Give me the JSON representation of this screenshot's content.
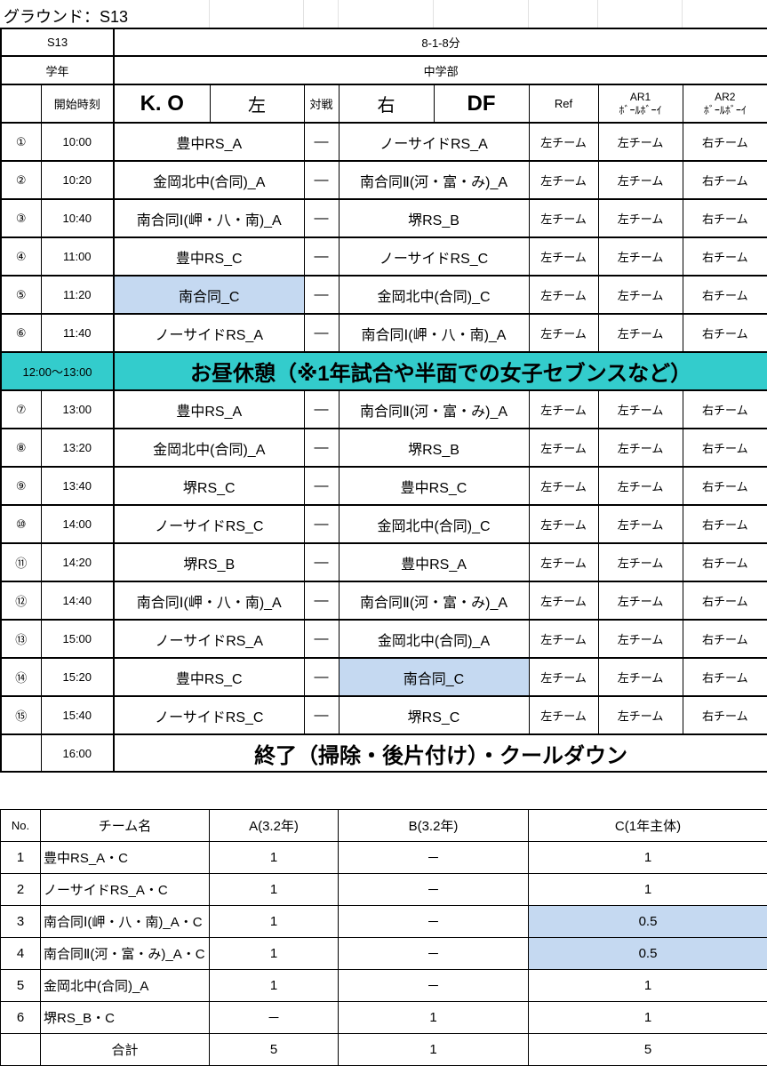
{
  "title": "グラウンド：S13",
  "colors": {
    "lunch": "#33CCCC",
    "highlight": "#C5D9F1"
  },
  "info": {
    "ground_label": "S13",
    "format": "8-1-8分",
    "grade_label": "学年",
    "grade": "中学部"
  },
  "header": {
    "start_time": "開始時刻",
    "ko": "K. O",
    "left": "左",
    "vs": "対戦",
    "right": "右",
    "df": "DF",
    "ref": "Ref",
    "ar1": "AR1",
    "ar1_sub": "ﾎﾞｰﾙﾎﾞｰｲ",
    "ar2": "AR2",
    "ar2_sub": "ﾎﾞｰﾙﾎﾞｰｲ"
  },
  "matches_am": [
    {
      "no": "①",
      "time": "10:00",
      "left": "豊中RS_A",
      "vs": "—",
      "right": "ノーサイドRS_A",
      "ref": "左チーム",
      "ar1": "左チーム",
      "ar2": "右チーム"
    },
    {
      "no": "②",
      "time": "10:20",
      "left": "金岡北中(合同)_A",
      "vs": "—",
      "right": "南合同Ⅱ(河・富・み)_A",
      "ref": "左チーム",
      "ar1": "左チーム",
      "ar2": "右チーム"
    },
    {
      "no": "③",
      "time": "10:40",
      "left": "南合同Ⅰ(岬・八・南)_A",
      "vs": "—",
      "right": "堺RS_B",
      "ref": "左チーム",
      "ar1": "左チーム",
      "ar2": "右チーム"
    },
    {
      "no": "④",
      "time": "11:00",
      "left": "豊中RS_C",
      "vs": "—",
      "right": "ノーサイドRS_C",
      "ref": "左チーム",
      "ar1": "左チーム",
      "ar2": "右チーム"
    },
    {
      "no": "⑤",
      "time": "11:20",
      "left": "南合同_C",
      "left_hl": true,
      "vs": "—",
      "right": "金岡北中(合同)_C",
      "ref": "左チーム",
      "ar1": "左チーム",
      "ar2": "右チーム"
    },
    {
      "no": "⑥",
      "time": "11:40",
      "left": "ノーサイドRS_A",
      "vs": "—",
      "right": "南合同Ⅰ(岬・八・南)_A",
      "ref": "左チーム",
      "ar1": "左チーム",
      "ar2": "右チーム"
    }
  ],
  "lunch": {
    "time": "12:00～13:00",
    "label": "お昼休憩（※1年試合や半面での女子セブンスなど）"
  },
  "matches_pm": [
    {
      "no": "⑦",
      "time": "13:00",
      "left": "豊中RS_A",
      "vs": "—",
      "right": "南合同Ⅱ(河・富・み)_A",
      "ref": "左チーム",
      "ar1": "左チーム",
      "ar2": "右チーム"
    },
    {
      "no": "⑧",
      "time": "13:20",
      "left": "金岡北中(合同)_A",
      "vs": "—",
      "right": "堺RS_B",
      "ref": "左チーム",
      "ar1": "左チーム",
      "ar2": "右チーム"
    },
    {
      "no": "⑨",
      "time": "13:40",
      "left": "堺RS_C",
      "vs": "—",
      "right": "豊中RS_C",
      "ref": "左チーム",
      "ar1": "左チーム",
      "ar2": "右チーム"
    },
    {
      "no": "⑩",
      "time": "14:00",
      "left": "ノーサイドRS_C",
      "vs": "—",
      "right": "金岡北中(合同)_C",
      "ref": "左チーム",
      "ar1": "左チーム",
      "ar2": "右チーム"
    },
    {
      "no": "⑪",
      "time": "14:20",
      "left": "堺RS_B",
      "vs": "—",
      "right": "豊中RS_A",
      "ref": "左チーム",
      "ar1": "左チーム",
      "ar2": "右チーム"
    },
    {
      "no": "⑫",
      "time": "14:40",
      "left": "南合同Ⅰ(岬・八・南)_A",
      "vs": "—",
      "right": "南合同Ⅱ(河・富・み)_A",
      "ref": "左チーム",
      "ar1": "左チーム",
      "ar2": "右チーム"
    },
    {
      "no": "⑬",
      "time": "15:00",
      "left": "ノーサイドRS_A",
      "vs": "—",
      "right": "金岡北中(合同)_A",
      "ref": "左チーム",
      "ar1": "左チーム",
      "ar2": "右チーム"
    },
    {
      "no": "⑭",
      "time": "15:20",
      "left": "豊中RS_C",
      "vs": "—",
      "right": "南合同_C",
      "right_hl": true,
      "ref": "左チーム",
      "ar1": "左チーム",
      "ar2": "右チーム"
    },
    {
      "no": "⑮",
      "time": "15:40",
      "left": "ノーサイドRS_C",
      "vs": "—",
      "right": "堺RS_C",
      "ref": "左チーム",
      "ar1": "左チーム",
      "ar2": "右チーム"
    }
  ],
  "end": {
    "time": "16:00",
    "label": "終了（掃除・後片付け）・クールダウン"
  },
  "summary": {
    "headers": [
      "No.",
      "チーム名",
      "A(3.2年)",
      "B(3.2年)",
      "C(1年主体)"
    ],
    "rows": [
      {
        "no": "1",
        "name": "豊中RS_A・C",
        "a": "1",
        "b": "－",
        "c": "1"
      },
      {
        "no": "2",
        "name": "ノーサイドRS_A・C",
        "a": "1",
        "b": "－",
        "c": "1"
      },
      {
        "no": "3",
        "name": "南合同Ⅰ(岬・八・南)_A・C",
        "a": "1",
        "b": "－",
        "c": "0.5",
        "c_hl": true
      },
      {
        "no": "4",
        "name": "南合同Ⅱ(河・富・み)_A・C",
        "a": "1",
        "b": "－",
        "c": "0.5",
        "c_hl": true
      },
      {
        "no": "5",
        "name": "金岡北中(合同)_A",
        "a": "1",
        "b": "－",
        "c": "1"
      },
      {
        "no": "6",
        "name": "堺RS_B・C",
        "a": "－",
        "b": "1",
        "c": "1"
      }
    ],
    "total": {
      "label": "合計",
      "a": "5",
      "b": "1",
      "c": "5"
    }
  }
}
